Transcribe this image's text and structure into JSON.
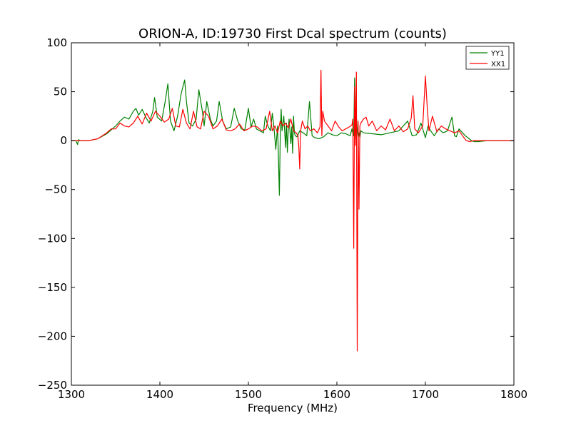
{
  "chart_data": {
    "type": "line",
    "title": "ORION-A, ID:19730 First Dcal spectrum (counts)",
    "xlabel": "Frequency (MHz)",
    "ylabel": "",
    "xlim": [
      1300,
      1800
    ],
    "ylim": [
      -250,
      100
    ],
    "xticks": [
      1300,
      1400,
      1500,
      1600,
      1700,
      1800
    ],
    "yticks": [
      100,
      50,
      0,
      -50,
      -100,
      -150,
      -200,
      -250
    ],
    "xtick_labels": [
      "1300",
      "1400",
      "1500",
      "1600",
      "1700",
      "1800"
    ],
    "ytick_labels": [
      "100",
      "50",
      "0",
      "−50",
      "−100",
      "−150",
      "−200",
      "−250"
    ],
    "grid": false,
    "legend_position": "top-right",
    "series": [
      {
        "name": "YY1",
        "color": "#008000",
        "x": [
          1300,
          1305,
          1307,
          1308,
          1310,
          1320,
          1330,
          1340,
          1350,
          1355,
          1360,
          1365,
          1370,
          1373,
          1376,
          1380,
          1384,
          1388,
          1392,
          1394,
          1397,
          1402,
          1406,
          1409,
          1412,
          1416,
          1420,
          1424,
          1428,
          1430,
          1433,
          1437,
          1441,
          1444,
          1448,
          1450,
          1453,
          1457,
          1460,
          1464,
          1467,
          1471,
          1475,
          1480,
          1484,
          1488,
          1492,
          1496,
          1500,
          1503,
          1506,
          1509,
          1513,
          1517,
          1519,
          1522,
          1525,
          1527,
          1529,
          1531,
          1533,
          1534,
          1535,
          1536,
          1537,
          1538,
          1540,
          1541,
          1542,
          1543,
          1544,
          1545,
          1546,
          1548,
          1549,
          1550,
          1551,
          1552,
          1553,
          1555,
          1558,
          1562,
          1566,
          1569,
          1572,
          1575,
          1580,
          1585,
          1590,
          1595,
          1600,
          1605,
          1610,
          1615,
          1617,
          1618,
          1619,
          1620,
          1621,
          1622,
          1623,
          1624,
          1625,
          1626,
          1627,
          1630,
          1640,
          1650,
          1660,
          1670,
          1680,
          1685,
          1690,
          1695,
          1700,
          1703,
          1706,
          1710,
          1715,
          1720,
          1725,
          1730,
          1733,
          1735,
          1738,
          1742,
          1745,
          1748,
          1752,
          1755,
          1760,
          1770,
          1780,
          1790,
          1800
        ],
        "values": [
          0,
          0,
          -4,
          1,
          0,
          0,
          2,
          7,
          15,
          20,
          24,
          22,
          30,
          33,
          26,
          32,
          24,
          18,
          30,
          44,
          24,
          20,
          40,
          58,
          20,
          10,
          25,
          48,
          62,
          40,
          18,
          15,
          22,
          52,
          30,
          15,
          40,
          22,
          15,
          20,
          40,
          20,
          12,
          14,
          33,
          20,
          12,
          11,
          33,
          14,
          22,
          12,
          10,
          8,
          25,
          15,
          10,
          28,
          12,
          -9,
          15,
          -20,
          -56,
          2,
          32,
          10,
          25,
          10,
          -7,
          18,
          -12,
          10,
          22,
          -3,
          14,
          -13,
          25,
          8,
          5,
          4,
          10,
          8,
          5,
          40,
          5,
          3,
          2,
          4,
          8,
          6,
          5,
          8,
          7,
          5,
          12,
          8,
          5,
          64,
          2,
          25,
          10,
          3,
          8,
          3,
          10,
          8,
          7,
          6,
          8,
          10,
          20,
          5,
          6,
          18,
          3,
          15,
          10,
          5,
          12,
          8,
          10,
          24,
          5,
          4,
          12,
          8,
          5,
          3,
          0,
          -1,
          -1,
          0,
          0,
          0,
          0
        ]
      },
      {
        "name": "XX1",
        "color": "#ff0000",
        "x": [
          1300,
          1310,
          1320,
          1330,
          1340,
          1345,
          1350,
          1355,
          1360,
          1365,
          1370,
          1375,
          1380,
          1385,
          1390,
          1395,
          1400,
          1405,
          1410,
          1414,
          1418,
          1422,
          1426,
          1430,
          1434,
          1438,
          1442,
          1446,
          1450,
          1455,
          1460,
          1465,
          1470,
          1475,
          1480,
          1485,
          1490,
          1495,
          1500,
          1505,
          1510,
          1515,
          1520,
          1524,
          1527,
          1530,
          1533,
          1536,
          1539,
          1542,
          1545,
          1548,
          1551,
          1554,
          1556,
          1557,
          1558,
          1559,
          1561,
          1564,
          1567,
          1570,
          1574,
          1578,
          1581,
          1582,
          1583,
          1584,
          1586,
          1590,
          1594,
          1598,
          1602,
          1606,
          1610,
          1614,
          1617,
          1618,
          1619,
          1620,
          1621,
          1622,
          1623,
          1624,
          1625,
          1626,
          1627,
          1630,
          1633,
          1636,
          1640,
          1645,
          1650,
          1655,
          1660,
          1665,
          1670,
          1675,
          1680,
          1684,
          1686,
          1688,
          1692,
          1697,
          1700,
          1702,
          1704,
          1708,
          1713,
          1718,
          1723,
          1728,
          1733,
          1738,
          1742,
          1746,
          1750,
          1755,
          1760,
          1770,
          1780,
          1790,
          1800
        ],
        "values": [
          0,
          0,
          0,
          2,
          8,
          12,
          12,
          18,
          15,
          14,
          18,
          25,
          17,
          28,
          20,
          30,
          25,
          19,
          22,
          33,
          15,
          14,
          32,
          18,
          12,
          30,
          14,
          12,
          30,
          25,
          12,
          15,
          22,
          11,
          10,
          12,
          17,
          10,
          12,
          15,
          14,
          10,
          12,
          30,
          10,
          15,
          8,
          20,
          15,
          18,
          13,
          22,
          10,
          8,
          5,
          -7,
          -29,
          10,
          20,
          12,
          15,
          10,
          12,
          8,
          14,
          72,
          5,
          30,
          20,
          15,
          10,
          20,
          14,
          10,
          12,
          14,
          16,
          22,
          -110,
          55,
          -5,
          70,
          -215,
          20,
          -70,
          15,
          18,
          22,
          24,
          15,
          20,
          10,
          15,
          11,
          22,
          10,
          15,
          9,
          12,
          23,
          46,
          12,
          8,
          15,
          66,
          35,
          10,
          25,
          9,
          15,
          12,
          10,
          8,
          10,
          5,
          0,
          -1,
          0,
          0,
          0,
          0,
          0,
          0
        ]
      }
    ]
  }
}
